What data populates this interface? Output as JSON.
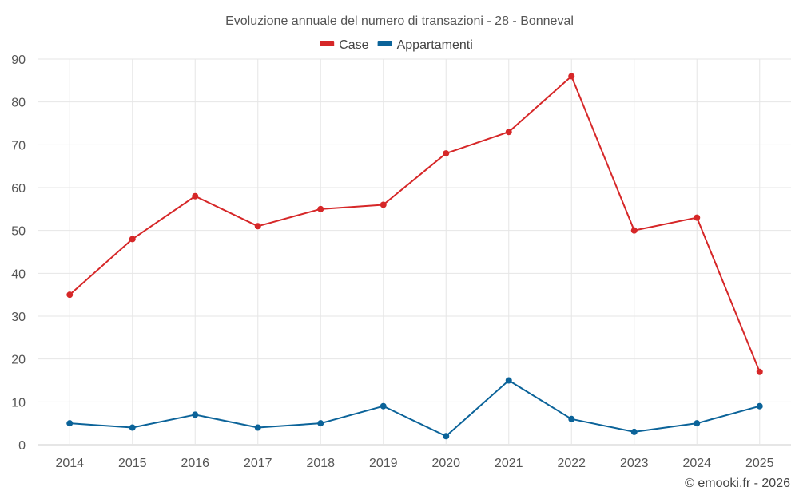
{
  "chart_data": {
    "type": "line",
    "title": "Evoluzione annuale del numero di transazioni - 28 - Bonneval",
    "categories": [
      "2014",
      "2015",
      "2016",
      "2017",
      "2018",
      "2019",
      "2020",
      "2021",
      "2022",
      "2023",
      "2024",
      "2025"
    ],
    "series": [
      {
        "name": "Case",
        "color": "#d62728",
        "values": [
          35,
          48,
          58,
          51,
          55,
          56,
          68,
          73,
          86,
          50,
          53,
          17
        ]
      },
      {
        "name": "Appartamenti",
        "color": "#0b6399",
        "values": [
          5,
          4,
          7,
          4,
          5,
          9,
          2,
          15,
          6,
          3,
          5,
          9
        ]
      }
    ],
    "ylim": [
      0,
      90
    ],
    "yticks": [
      0,
      10,
      20,
      30,
      40,
      50,
      60,
      70,
      80,
      90
    ],
    "grid": true,
    "legend_position": "top-center",
    "xlabel": "",
    "ylabel": ""
  },
  "credit": "© emooki.fr - 2026"
}
